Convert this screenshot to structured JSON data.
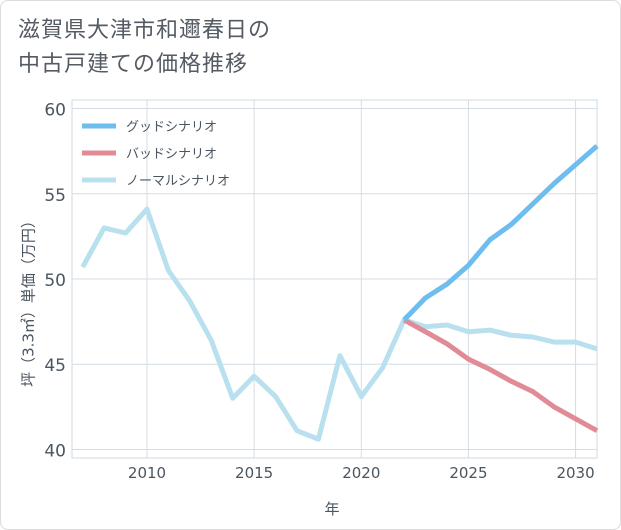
{
  "chart_data": {
    "type": "line",
    "title": [
      "滋賀県大津市和邇春日の",
      "中古戸建ての価格推移"
    ],
    "xlabel": "年",
    "ylabel": "坪（3.3㎡）単価（万円）",
    "xlim": [
      2006.5,
      2031
    ],
    "ylim": [
      39.5,
      60.5
    ],
    "xticks": [
      2010,
      2015,
      2020,
      2025,
      2030
    ],
    "yticks": [
      40,
      45,
      50,
      55,
      60
    ],
    "grid": true,
    "legend_position": "top-left",
    "series": [
      {
        "name": "グッドシナリオ",
        "color": "#6dbdee",
        "x": [
          2022,
          2023,
          2024,
          2025,
          2026,
          2027,
          2028,
          2029,
          2030,
          2031
        ],
        "y": [
          47.6,
          48.9,
          49.7,
          50.8,
          52.3,
          53.2,
          54.4,
          55.6,
          56.7,
          57.8
        ]
      },
      {
        "name": "バッドシナリオ",
        "color": "#e08b95",
        "x": [
          2022,
          2023,
          2024,
          2025,
          2026,
          2027,
          2028,
          2029,
          2030,
          2031
        ],
        "y": [
          47.6,
          46.9,
          46.2,
          45.3,
          44.7,
          44.0,
          43.4,
          42.5,
          41.8,
          41.1
        ]
      },
      {
        "name": "ノーマルシナリオ",
        "color": "#b9e0ef",
        "x": [
          2007,
          2008,
          2009,
          2010,
          2011,
          2012,
          2013,
          2014,
          2015,
          2016,
          2017,
          2018,
          2019,
          2020,
          2021,
          2022,
          2023,
          2024,
          2025,
          2026,
          2027,
          2028,
          2029,
          2030,
          2031
        ],
        "y": [
          50.7,
          53.0,
          52.7,
          54.1,
          50.5,
          48.7,
          46.4,
          43.0,
          44.3,
          43.1,
          41.1,
          40.6,
          45.5,
          43.1,
          44.8,
          47.6,
          47.2,
          47.3,
          46.9,
          47.0,
          46.7,
          46.6,
          46.3,
          46.3,
          45.9
        ]
      }
    ]
  }
}
